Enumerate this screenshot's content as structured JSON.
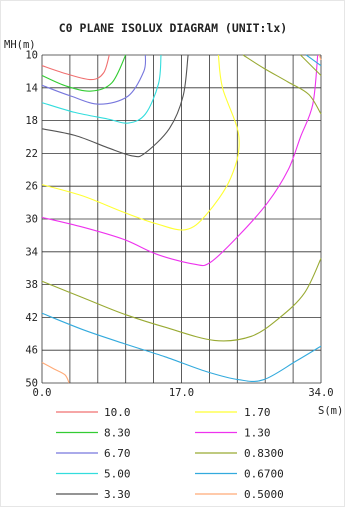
{
  "chart_data": {
    "type": "line",
    "title": "C0 PLANE ISOLUX DIAGRAM (UNIT:lx)",
    "xlabel": "S(m)",
    "ylabel": "MH(m)",
    "xlim": [
      0,
      34
    ],
    "ylim": [
      10,
      50
    ],
    "x_tick_labels": [
      {
        "value": 0,
        "label": "0.0"
      },
      {
        "value": 17,
        "label": "17.0"
      },
      {
        "value": 34,
        "label": "34.0"
      }
    ],
    "y_tick_labels": [
      {
        "value": 10,
        "label": "10"
      },
      {
        "value": 14,
        "label": "14"
      },
      {
        "value": 18,
        "label": "18"
      },
      {
        "value": 22,
        "label": "22"
      },
      {
        "value": 26,
        "label": "26"
      },
      {
        "value": 30,
        "label": "30"
      },
      {
        "value": 34,
        "label": "34"
      },
      {
        "value": 38,
        "label": "38"
      },
      {
        "value": 42,
        "label": "42"
      },
      {
        "value": 46,
        "label": "46"
      },
      {
        "value": 50,
        "label": "50"
      }
    ],
    "grid": true,
    "grid_x_step": 3.4,
    "grid_y_step": 4,
    "legend_position": "bottom",
    "series": [
      {
        "name": "10.0",
        "color": "#f07070",
        "points": [
          [
            0,
            11.3
          ],
          [
            3,
            12.3
          ],
          [
            6,
            13
          ],
          [
            7.5,
            12.2
          ],
          [
            8.2,
            10
          ]
        ]
      },
      {
        "name": "8.30",
        "color": "#33cc33",
        "points": [
          [
            0,
            12.5
          ],
          [
            3,
            13.8
          ],
          [
            6,
            14.4
          ],
          [
            8.5,
            13.4
          ],
          [
            10.2,
            10
          ]
        ]
      },
      {
        "name": "6.70",
        "color": "#7777dd",
        "points": [
          [
            0,
            13.7
          ],
          [
            3.5,
            15
          ],
          [
            7,
            16
          ],
          [
            10.5,
            15
          ],
          [
            12.4,
            12
          ],
          [
            12.6,
            10
          ]
        ]
      },
      {
        "name": "5.00",
        "color": "#33dddd",
        "points": [
          [
            0,
            15.8
          ],
          [
            4,
            17
          ],
          [
            8,
            17.8
          ],
          [
            10.5,
            18.3
          ],
          [
            12.6,
            17.2
          ],
          [
            14.2,
            13.5
          ],
          [
            14.5,
            10
          ]
        ]
      },
      {
        "name": "3.30",
        "color": "#555555",
        "points": [
          [
            0,
            19
          ],
          [
            4,
            19.8
          ],
          [
            8,
            21.3
          ],
          [
            11,
            22.3
          ],
          [
            12.5,
            22
          ],
          [
            15.5,
            19
          ],
          [
            17.2,
            15
          ],
          [
            17.8,
            10
          ]
        ]
      },
      {
        "name": "1.70",
        "color": "#ffff33",
        "points": [
          [
            0,
            25.8
          ],
          [
            5,
            27.2
          ],
          [
            10,
            29.2
          ],
          [
            14,
            30.6
          ],
          [
            17.5,
            31.3
          ],
          [
            20,
            29.5
          ],
          [
            23,
            25
          ],
          [
            24,
            20
          ],
          [
            22,
            14
          ],
          [
            21.5,
            10
          ]
        ]
      },
      {
        "name": "1.30",
        "color": "#ee33ee",
        "points": [
          [
            0,
            29.8
          ],
          [
            5,
            31
          ],
          [
            10,
            32.5
          ],
          [
            14,
            34.3
          ],
          [
            18.5,
            35.5
          ],
          [
            20.5,
            35.3
          ],
          [
            24,
            32
          ],
          [
            27.5,
            28
          ],
          [
            30,
            24
          ],
          [
            31.5,
            20
          ],
          [
            33,
            16
          ],
          [
            33.6,
            10
          ]
        ]
      },
      {
        "name": "0.8300",
        "color": "#99aa33",
        "points": [
          [
            0,
            37.6
          ],
          [
            5,
            39.6
          ],
          [
            10,
            41.6
          ],
          [
            15,
            43.2
          ],
          [
            21,
            44.8
          ],
          [
            25.5,
            44.3
          ],
          [
            29,
            42
          ],
          [
            32,
            39
          ],
          [
            34,
            34.8
          ]
        ]
      },
      {
        "name": "0.6700",
        "color": "#33aadd",
        "points": [
          [
            0,
            41.5
          ],
          [
            5,
            43.5
          ],
          [
            10,
            45.2
          ],
          [
            15,
            46.8
          ],
          [
            20,
            48.6
          ],
          [
            24,
            49.6
          ],
          [
            27,
            49.6
          ],
          [
            31,
            47.3
          ],
          [
            34,
            45.5
          ]
        ]
      },
      {
        "name": "0.5000",
        "color": "#ffaa77",
        "points": [
          [
            0,
            47.5
          ],
          [
            1.5,
            48.3
          ],
          [
            2.8,
            49
          ],
          [
            3.3,
            50
          ]
        ]
      },
      {
        "name": "",
        "color": "#99aa33",
        "points": [
          [
            24.5,
            10
          ],
          [
            27,
            11.6
          ],
          [
            30,
            13.3
          ],
          [
            32.5,
            14.8
          ],
          [
            34,
            17.2
          ]
        ]
      },
      {
        "name": "",
        "color": "#99aa33",
        "points": [
          [
            31.5,
            10
          ],
          [
            34,
            12.5
          ]
        ]
      },
      {
        "name": "",
        "color": "#33aadd",
        "points": [
          [
            32.2,
            10
          ],
          [
            34,
            11.3
          ]
        ]
      },
      {
        "name": "",
        "color": "#ffaa77",
        "points": [
          [
            33.8,
            10
          ],
          [
            34,
            10.6
          ]
        ]
      }
    ],
    "legend": [
      {
        "label": "10.0",
        "color": "#f07070"
      },
      {
        "label": "1.70",
        "color": "#ffff33"
      },
      {
        "label": "8.30",
        "color": "#33cc33"
      },
      {
        "label": "1.30",
        "color": "#ee33ee"
      },
      {
        "label": "6.70",
        "color": "#7777dd"
      },
      {
        "label": "0.8300",
        "color": "#99aa33"
      },
      {
        "label": "5.00",
        "color": "#33dddd"
      },
      {
        "label": "0.6700",
        "color": "#33aadd"
      },
      {
        "label": "3.30",
        "color": "#555555"
      },
      {
        "label": "0.5000",
        "color": "#ffaa77"
      }
    ]
  }
}
